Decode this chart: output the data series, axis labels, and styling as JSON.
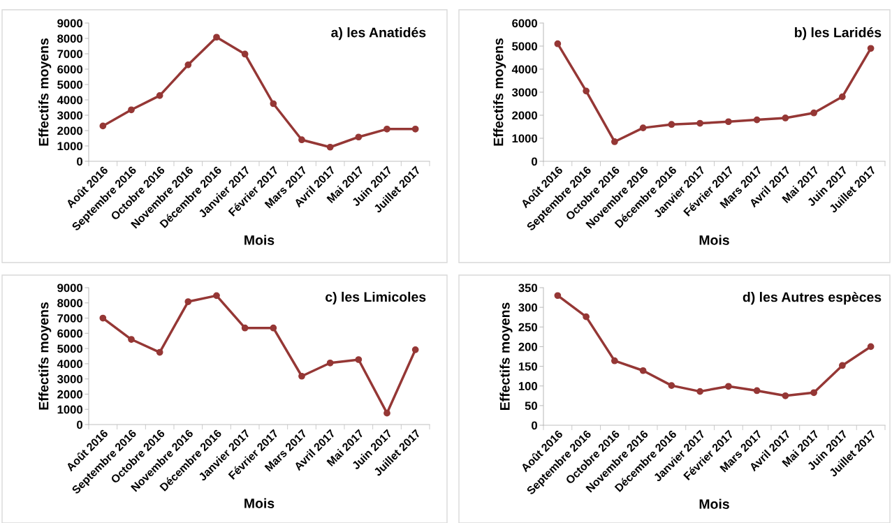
{
  "chart_data": [
    {
      "type": "line",
      "title": "a) les Anatidés",
      "xlabel": "Mois",
      "ylabel": "Effectifs moyens",
      "categories": [
        "Août 2016",
        "Septembre 2016",
        "Octobre 2016",
        "Novembre 2016",
        "Décembre 2016",
        "Janvier 2017",
        "Février 2017",
        "Mars 2017",
        "Avril 2017",
        "Mai 2017",
        "Juin 2017",
        "Juillet 2017"
      ],
      "marker": "circle",
      "grid": false,
      "ylim": [
        0,
        9000
      ],
      "yticks": [
        0,
        1000,
        2000,
        3000,
        4000,
        5000,
        6000,
        7000,
        8000,
        9000
      ],
      "series": [
        {
          "color": "#953735",
          "values": [
            2300,
            3350,
            4280,
            6280,
            8080,
            6980,
            3750,
            1400,
            920,
            1580,
            2100,
            2100
          ]
        }
      ]
    },
    {
      "type": "line",
      "title": "b) les Laridés",
      "xlabel": "Mois",
      "ylabel": "Effectifs moyens",
      "categories": [
        "Août 2016",
        "Septembre 2016",
        "Octobre 2016",
        "Novembre 2016",
        "Décembre 2016",
        "Janvier 2017",
        "Février 2017",
        "Mars 2017",
        "Avril 2017",
        "Mai 2017",
        "Juin 2017",
        "Juillet 2017"
      ],
      "marker": "circle",
      "grid": false,
      "ylim": [
        0,
        6000
      ],
      "yticks": [
        0,
        1000,
        2000,
        3000,
        4000,
        5000,
        6000
      ],
      "series": [
        {
          "color": "#953735",
          "values": [
            5100,
            3050,
            850,
            1450,
            1600,
            1650,
            1720,
            1800,
            1880,
            2100,
            2800,
            4900
          ]
        }
      ]
    },
    {
      "type": "line",
      "title": "c) les Limicoles",
      "xlabel": "Mois",
      "ylabel": "Effectifs moyens",
      "categories": [
        "Août 2016",
        "Septembre 2016",
        "Octobre 2016",
        "Novembre 2016",
        "Décembre 2016",
        "Janvier 2017",
        "Février 2017",
        "Mars 2017",
        "Avril 2017",
        "Mai 2017",
        "Juin 2017",
        "Juillet 2017"
      ],
      "marker": "circle",
      "grid": false,
      "ylim": [
        0,
        9000
      ],
      "yticks": [
        0,
        1000,
        2000,
        3000,
        4000,
        5000,
        6000,
        7000,
        8000,
        9000
      ],
      "series": [
        {
          "color": "#953735",
          "values": [
            7000,
            5600,
            4750,
            8080,
            8480,
            6350,
            6350,
            3180,
            4050,
            4270,
            750,
            4920
          ]
        }
      ]
    },
    {
      "type": "line",
      "title": "d) les Autres espèces",
      "xlabel": "Mois",
      "ylabel": "Effectifs moyens",
      "categories": [
        "Août 2016",
        "Septembre 2016",
        "Octobre 2016",
        "Novembre 2016",
        "Décembre 2016",
        "Janvier 2017",
        "Février 2017",
        "Mars 2017",
        "Avril 2017",
        "Mai 2017",
        "Juin 2017",
        "Juillet 2017"
      ],
      "marker": "circle",
      "grid": false,
      "ylim": [
        0,
        350
      ],
      "yticks": [
        0,
        50,
        100,
        150,
        200,
        250,
        300,
        350
      ],
      "series": [
        {
          "color": "#953735",
          "values": [
            330,
            276,
            164,
            139,
            101,
            86,
            99,
            88,
            75,
            83,
            152,
            200
          ]
        }
      ]
    }
  ]
}
